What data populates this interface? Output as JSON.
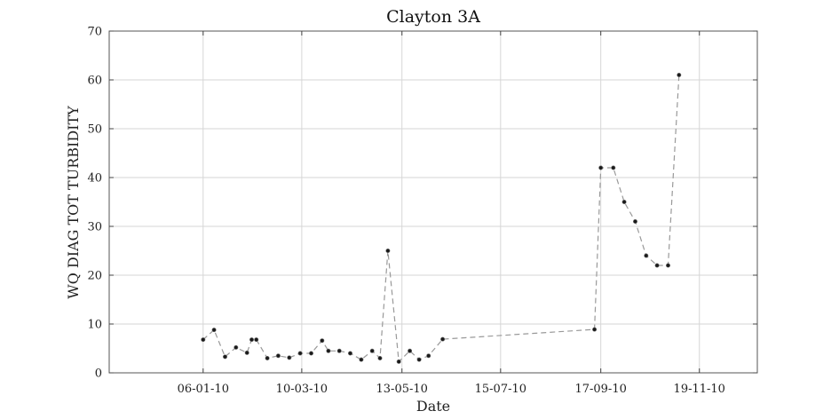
{
  "chart_data": {
    "type": "line",
    "title": "Clayton 3A",
    "xlabel": "Date",
    "ylabel": "WQ DIAG TOT TURBIDITY",
    "x_tick_labels": [
      "06-01-10",
      "10-03-10",
      "13-05-10",
      "15-07-10",
      "17-09-10",
      "19-11-10"
    ],
    "y_tick_labels": [
      "0",
      "10",
      "20",
      "30",
      "40",
      "50",
      "60",
      "70"
    ],
    "ylim": [
      0,
      70
    ],
    "xlim": [
      "2009-11-07",
      "2010-12-26"
    ],
    "grid": true,
    "colors": {
      "line": "#999999",
      "marker": "#1a1a1a",
      "marker_edge": "#777777"
    },
    "series": [
      {
        "points": [
          [
            "2010-01-06",
            6.8
          ],
          [
            "2010-01-13",
            8.8
          ],
          [
            "2010-01-20",
            3.3
          ],
          [
            "2010-01-27",
            5.2
          ],
          [
            "2010-02-03",
            4.1
          ],
          [
            "2010-02-06",
            6.8
          ],
          [
            "2010-02-09",
            6.8
          ],
          [
            "2010-02-16",
            3.0
          ],
          [
            "2010-02-23",
            3.5
          ],
          [
            "2010-03-02",
            3.1
          ],
          [
            "2010-03-09",
            4.0
          ],
          [
            "2010-03-16",
            4.0
          ],
          [
            "2010-03-23",
            6.6
          ],
          [
            "2010-03-27",
            4.5
          ],
          [
            "2010-04-03",
            4.5
          ],
          [
            "2010-04-10",
            4.0
          ],
          [
            "2010-04-17",
            2.7
          ],
          [
            "2010-04-24",
            4.5
          ],
          [
            "2010-04-29",
            3.0
          ],
          [
            "2010-05-04",
            25.0
          ],
          [
            "2010-05-11",
            2.3
          ],
          [
            "2010-05-18",
            4.5
          ],
          [
            "2010-05-24",
            2.7
          ],
          [
            "2010-05-30",
            3.5
          ],
          [
            "2010-06-08",
            6.9
          ],
          [
            "2010-09-13",
            8.9
          ],
          [
            "2010-09-17",
            42.0
          ],
          [
            "2010-09-25",
            42.0
          ],
          [
            "2010-10-02",
            35.0
          ],
          [
            "2010-10-09",
            31.0
          ],
          [
            "2010-10-16",
            24.0
          ],
          [
            "2010-10-23",
            22.0
          ],
          [
            "2010-10-30",
            22.0
          ],
          [
            "2010-11-06",
            61.0
          ]
        ]
      }
    ]
  }
}
